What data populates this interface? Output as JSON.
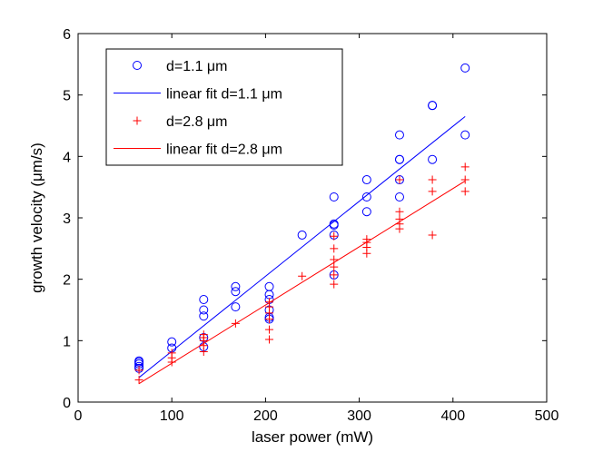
{
  "chart_data": {
    "type": "scatter",
    "xlabel": "laser power (mW)",
    "ylabel": "growth velocity (μm/s)",
    "xlim": [
      0,
      500
    ],
    "ylim": [
      0,
      6
    ],
    "xticks": [
      0,
      100,
      200,
      300,
      400,
      500
    ],
    "yticks": [
      0,
      1,
      2,
      3,
      4,
      5,
      6
    ],
    "grid": false,
    "legend_position": "top-left",
    "series": [
      {
        "name": "d=1.1 μm",
        "kind": "marker",
        "marker": "circle",
        "color": "#0000ff",
        "x": [
          65,
          65,
          65,
          65,
          65,
          100,
          100,
          134,
          134,
          134,
          134,
          134,
          168,
          168,
          168,
          204,
          204,
          204,
          204,
          204,
          204,
          239,
          273,
          273,
          273,
          273,
          273,
          308,
          308,
          308,
          343,
          343,
          343,
          343,
          343,
          378,
          378,
          378,
          413,
          413
        ],
        "y": [
          0.55,
          0.58,
          0.62,
          0.65,
          0.67,
          0.88,
          0.98,
          0.9,
          1.05,
          1.4,
          1.5,
          1.67,
          1.55,
          1.8,
          1.88,
          1.35,
          1.38,
          1.5,
          1.67,
          1.75,
          1.88,
          2.72,
          2.07,
          2.72,
          2.88,
          2.9,
          3.34,
          3.1,
          3.34,
          3.62,
          3.34,
          3.62,
          3.95,
          3.95,
          4.35,
          3.95,
          4.83,
          4.83,
          4.35,
          5.44
        ]
      },
      {
        "name": "linear fit d=1.1 μm",
        "kind": "line",
        "color": "#0000ff",
        "x": [
          65,
          413
        ],
        "y": [
          0.4,
          4.65
        ]
      },
      {
        "name": "d=2.8 μm",
        "kind": "marker",
        "marker": "plus",
        "color": "#ff0000",
        "x": [
          65,
          65,
          100,
          100,
          100,
          134,
          134,
          134,
          134,
          134,
          168,
          204,
          204,
          204,
          204,
          204,
          204,
          239,
          273,
          273,
          273,
          273,
          273,
          273,
          308,
          308,
          308,
          308,
          343,
          343,
          343,
          343,
          343,
          378,
          378,
          378,
          413,
          413,
          413
        ],
        "y": [
          0.36,
          0.52,
          0.65,
          0.72,
          0.8,
          0.82,
          0.92,
          1.0,
          1.05,
          1.1,
          1.28,
          1.02,
          1.18,
          1.35,
          1.45,
          1.55,
          1.63,
          2.05,
          1.92,
          2.07,
          2.2,
          2.32,
          2.5,
          2.7,
          2.42,
          2.52,
          2.6,
          2.65,
          2.82,
          2.9,
          2.98,
          3.1,
          3.62,
          2.72,
          3.43,
          3.62,
          3.43,
          3.62,
          3.83
        ]
      },
      {
        "name": "linear fit d=2.8 μm",
        "kind": "line",
        "color": "#ff0000",
        "x": [
          65,
          413
        ],
        "y": [
          0.3,
          3.6
        ]
      }
    ]
  }
}
